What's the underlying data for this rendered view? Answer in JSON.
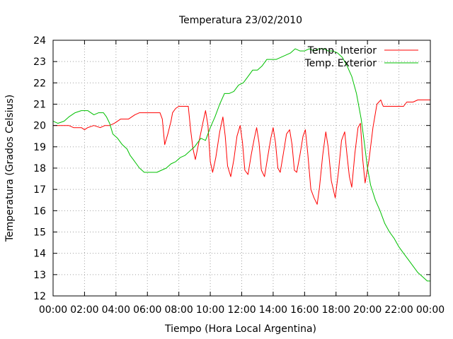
{
  "chart_data": {
    "type": "line",
    "title": "Temperatura 23/02/2010",
    "xlabel": "Tiempo (Hora Local Argentina)",
    "ylabel": "Temperatura (Grados Celsius)",
    "xlim": [
      0,
      24
    ],
    "ylim": [
      12,
      24
    ],
    "x_tick_labels": [
      "00:00",
      "02:00",
      "04:00",
      "06:00",
      "08:00",
      "10:00",
      "12:00",
      "14:00",
      "16:00",
      "18:00",
      "20:00",
      "22:00",
      "00:00"
    ],
    "y_ticks": [
      12,
      13,
      14,
      15,
      16,
      17,
      18,
      19,
      20,
      21,
      22,
      23,
      24
    ],
    "grid": true,
    "legend_position": "top-right",
    "series": [
      {
        "name": "Temp. Interior",
        "color": "#ff0000",
        "points": [
          [
            0,
            20.0
          ],
          [
            0.5,
            20.0
          ],
          [
            1,
            20.0
          ],
          [
            1.3,
            19.9
          ],
          [
            1.8,
            19.9
          ],
          [
            2.0,
            19.8
          ],
          [
            2.2,
            19.9
          ],
          [
            2.6,
            20.0
          ],
          [
            3.0,
            19.9
          ],
          [
            3.3,
            20.0
          ],
          [
            3.6,
            20.0
          ],
          [
            3.9,
            20.1
          ],
          [
            4.3,
            20.3
          ],
          [
            4.8,
            20.3
          ],
          [
            5.2,
            20.5
          ],
          [
            5.5,
            20.6
          ],
          [
            6.0,
            20.6
          ],
          [
            6.5,
            20.6
          ],
          [
            6.8,
            20.6
          ],
          [
            6.95,
            20.3
          ],
          [
            7.1,
            19.1
          ],
          [
            7.3,
            19.6
          ],
          [
            7.5,
            20.2
          ],
          [
            7.6,
            20.6
          ],
          [
            7.8,
            20.8
          ],
          [
            8.0,
            20.9
          ],
          [
            8.3,
            20.9
          ],
          [
            8.6,
            20.9
          ],
          [
            8.75,
            19.8
          ],
          [
            8.9,
            18.9
          ],
          [
            9.05,
            18.4
          ],
          [
            9.3,
            19.3
          ],
          [
            9.55,
            20.2
          ],
          [
            9.7,
            20.7
          ],
          [
            9.85,
            20.0
          ],
          [
            10.0,
            18.3
          ],
          [
            10.15,
            17.8
          ],
          [
            10.35,
            18.5
          ],
          [
            10.6,
            19.7
          ],
          [
            10.8,
            20.4
          ],
          [
            10.95,
            19.5
          ],
          [
            11.1,
            18.1
          ],
          [
            11.3,
            17.6
          ],
          [
            11.5,
            18.4
          ],
          [
            11.7,
            19.5
          ],
          [
            11.9,
            20.0
          ],
          [
            12.05,
            19.2
          ],
          [
            12.2,
            17.9
          ],
          [
            12.4,
            17.7
          ],
          [
            12.6,
            18.6
          ],
          [
            12.8,
            19.4
          ],
          [
            12.95,
            19.9
          ],
          [
            13.1,
            19.2
          ],
          [
            13.25,
            17.9
          ],
          [
            13.45,
            17.6
          ],
          [
            13.65,
            18.5
          ],
          [
            13.85,
            19.4
          ],
          [
            14.0,
            19.9
          ],
          [
            14.15,
            19.2
          ],
          [
            14.3,
            18.0
          ],
          [
            14.45,
            17.8
          ],
          [
            14.65,
            18.7
          ],
          [
            14.85,
            19.6
          ],
          [
            15.05,
            19.8
          ],
          [
            15.2,
            19.1
          ],
          [
            15.35,
            17.9
          ],
          [
            15.5,
            17.8
          ],
          [
            15.7,
            18.6
          ],
          [
            15.9,
            19.5
          ],
          [
            16.05,
            19.8
          ],
          [
            16.2,
            18.7
          ],
          [
            16.4,
            17.0
          ],
          [
            16.6,
            16.6
          ],
          [
            16.8,
            16.3
          ],
          [
            16.95,
            17.1
          ],
          [
            17.15,
            18.6
          ],
          [
            17.35,
            19.7
          ],
          [
            17.5,
            19.0
          ],
          [
            17.7,
            17.4
          ],
          [
            17.95,
            16.6
          ],
          [
            18.15,
            17.8
          ],
          [
            18.35,
            19.3
          ],
          [
            18.55,
            19.7
          ],
          [
            18.7,
            18.6
          ],
          [
            18.85,
            17.6
          ],
          [
            19.0,
            17.1
          ],
          [
            19.2,
            18.7
          ],
          [
            19.4,
            19.9
          ],
          [
            19.55,
            20.1
          ],
          [
            19.7,
            18.4
          ],
          [
            19.85,
            17.3
          ],
          [
            20.1,
            18.4
          ],
          [
            20.35,
            19.9
          ],
          [
            20.6,
            21.0
          ],
          [
            20.85,
            21.2
          ],
          [
            21.0,
            20.9
          ],
          [
            21.5,
            20.9
          ],
          [
            22.0,
            20.9
          ],
          [
            22.3,
            20.9
          ],
          [
            22.5,
            21.1
          ],
          [
            22.9,
            21.1
          ],
          [
            23.2,
            21.2
          ],
          [
            23.6,
            21.2
          ],
          [
            24.0,
            21.2
          ]
        ]
      },
      {
        "name": "Temp. Exterior",
        "color": "#00c000",
        "points": [
          [
            0,
            20.2
          ],
          [
            0.3,
            20.1
          ],
          [
            0.7,
            20.2
          ],
          [
            1.0,
            20.4
          ],
          [
            1.4,
            20.6
          ],
          [
            1.8,
            20.7
          ],
          [
            2.2,
            20.7
          ],
          [
            2.4,
            20.6
          ],
          [
            2.6,
            20.5
          ],
          [
            2.9,
            20.6
          ],
          [
            3.2,
            20.6
          ],
          [
            3.4,
            20.4
          ],
          [
            3.6,
            20.1
          ],
          [
            3.8,
            19.6
          ],
          [
            4.1,
            19.4
          ],
          [
            4.4,
            19.1
          ],
          [
            4.7,
            18.9
          ],
          [
            4.9,
            18.6
          ],
          [
            5.1,
            18.4
          ],
          [
            5.3,
            18.2
          ],
          [
            5.5,
            18.0
          ],
          [
            5.8,
            17.8
          ],
          [
            6.2,
            17.8
          ],
          [
            6.6,
            17.8
          ],
          [
            6.9,
            17.9
          ],
          [
            7.2,
            18.0
          ],
          [
            7.5,
            18.2
          ],
          [
            7.8,
            18.3
          ],
          [
            8.1,
            18.5
          ],
          [
            8.4,
            18.6
          ],
          [
            8.7,
            18.8
          ],
          [
            9.0,
            19.0
          ],
          [
            9.2,
            19.2
          ],
          [
            9.4,
            19.4
          ],
          [
            9.7,
            19.3
          ],
          [
            10.0,
            19.9
          ],
          [
            10.3,
            20.4
          ],
          [
            10.6,
            21.0
          ],
          [
            10.9,
            21.5
          ],
          [
            11.2,
            21.5
          ],
          [
            11.5,
            21.6
          ],
          [
            11.8,
            21.9
          ],
          [
            12.1,
            22.0
          ],
          [
            12.4,
            22.3
          ],
          [
            12.7,
            22.6
          ],
          [
            13.0,
            22.6
          ],
          [
            13.3,
            22.8
          ],
          [
            13.6,
            23.1
          ],
          [
            13.9,
            23.1
          ],
          [
            14.2,
            23.1
          ],
          [
            14.5,
            23.2
          ],
          [
            14.8,
            23.3
          ],
          [
            15.1,
            23.4
          ],
          [
            15.4,
            23.6
          ],
          [
            15.7,
            23.5
          ],
          [
            16.0,
            23.5
          ],
          [
            16.3,
            23.6
          ],
          [
            16.6,
            23.5
          ],
          [
            16.9,
            23.6
          ],
          [
            17.2,
            23.6
          ],
          [
            17.5,
            23.5
          ],
          [
            17.8,
            23.5
          ],
          [
            18.1,
            23.4
          ],
          [
            18.4,
            23.2
          ],
          [
            18.7,
            22.8
          ],
          [
            19.0,
            22.3
          ],
          [
            19.3,
            21.5
          ],
          [
            19.6,
            20.3
          ],
          [
            19.8,
            19.2
          ],
          [
            20.0,
            18.0
          ],
          [
            20.2,
            17.2
          ],
          [
            20.5,
            16.5
          ],
          [
            20.8,
            16.0
          ],
          [
            21.1,
            15.4
          ],
          [
            21.4,
            15.0
          ],
          [
            21.7,
            14.7
          ],
          [
            22.0,
            14.3
          ],
          [
            22.3,
            14.0
          ],
          [
            22.6,
            13.7
          ],
          [
            22.9,
            13.4
          ],
          [
            23.2,
            13.1
          ],
          [
            23.5,
            12.9
          ],
          [
            23.8,
            12.7
          ],
          [
            24.0,
            12.7
          ]
        ]
      }
    ]
  }
}
